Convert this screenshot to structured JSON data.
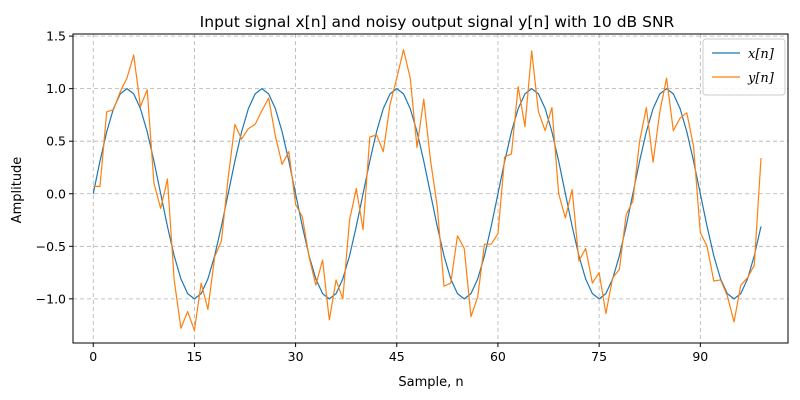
{
  "chart_data": {
    "type": "line",
    "title": "Input signal x[n] and noisy output signal y[n] with 10 dB SNR",
    "xlabel": "Sample, n",
    "ylabel": "Amplitude",
    "xlim": [
      -3,
      103
    ],
    "ylim": [
      -1.42,
      1.52
    ],
    "xticks": [
      0,
      15,
      30,
      45,
      60,
      75,
      90
    ],
    "yticks": [
      -1.0,
      -0.5,
      0.0,
      0.5,
      1.0,
      1.5
    ],
    "ytick_labels": [
      "−1.0",
      "−0.5",
      "0.0",
      "0.5",
      "1.0",
      "1.5"
    ],
    "grid": true,
    "legend": "top-right",
    "series": [
      {
        "name": "x[n]",
        "color": "#1f77b4",
        "values": [
          0.0,
          0.31,
          0.59,
          0.81,
          0.95,
          1.0,
          0.95,
          0.81,
          0.59,
          0.31,
          0.0,
          -0.31,
          -0.59,
          -0.81,
          -0.95,
          -1.0,
          -0.95,
          -0.81,
          -0.59,
          -0.31,
          0.0,
          0.31,
          0.59,
          0.81,
          0.95,
          1.0,
          0.95,
          0.81,
          0.59,
          0.31,
          0.0,
          -0.31,
          -0.59,
          -0.81,
          -0.95,
          -1.0,
          -0.95,
          -0.81,
          -0.59,
          -0.31,
          0.0,
          0.31,
          0.59,
          0.81,
          0.95,
          1.0,
          0.95,
          0.81,
          0.59,
          0.31,
          0.0,
          -0.31,
          -0.59,
          -0.81,
          -0.95,
          -1.0,
          -0.95,
          -0.81,
          -0.59,
          -0.31,
          0.0,
          0.31,
          0.59,
          0.81,
          0.95,
          1.0,
          0.95,
          0.81,
          0.59,
          0.31,
          0.0,
          -0.31,
          -0.59,
          -0.81,
          -0.95,
          -1.0,
          -0.95,
          -0.81,
          -0.59,
          -0.31,
          0.0,
          0.31,
          0.59,
          0.81,
          0.95,
          1.0,
          0.95,
          0.81,
          0.59,
          0.31,
          0.0,
          -0.31,
          -0.59,
          -0.81,
          -0.95,
          -1.0,
          -0.95,
          -0.81,
          -0.59,
          -0.31
        ]
      },
      {
        "name": "y[n]",
        "color": "#ff7f0e",
        "values": [
          0.07,
          0.07,
          0.78,
          0.8,
          0.97,
          1.1,
          1.32,
          0.83,
          0.99,
          0.1,
          -0.14,
          0.14,
          -0.82,
          -1.28,
          -1.12,
          -1.3,
          -0.85,
          -1.1,
          -0.6,
          -0.45,
          0.15,
          0.66,
          0.52,
          0.62,
          0.66,
          0.79,
          0.91,
          0.55,
          0.28,
          0.4,
          -0.1,
          -0.22,
          -0.6,
          -0.87,
          -0.63,
          -1.2,
          -0.82,
          -1.0,
          -0.25,
          0.05,
          -0.34,
          0.54,
          0.56,
          0.4,
          0.85,
          1.1,
          1.37,
          1.1,
          0.44,
          0.9,
          0.32,
          -0.12,
          -0.88,
          -0.85,
          -0.4,
          -0.52,
          -1.17,
          -0.98,
          -0.48,
          -0.48,
          -0.38,
          0.35,
          0.38,
          1.02,
          0.64,
          1.36,
          0.78,
          0.6,
          0.82,
          0.0,
          -0.23,
          0.04,
          -0.64,
          -0.52,
          -0.85,
          -0.75,
          -1.14,
          -0.8,
          -0.72,
          -0.2,
          -0.07,
          0.5,
          0.82,
          0.3,
          0.78,
          1.1,
          0.6,
          0.72,
          0.77,
          0.45,
          -0.37,
          -0.5,
          -0.83,
          -0.82,
          -0.97,
          -1.22,
          -0.87,
          -0.8,
          -0.68,
          0.34
        ]
      }
    ]
  }
}
